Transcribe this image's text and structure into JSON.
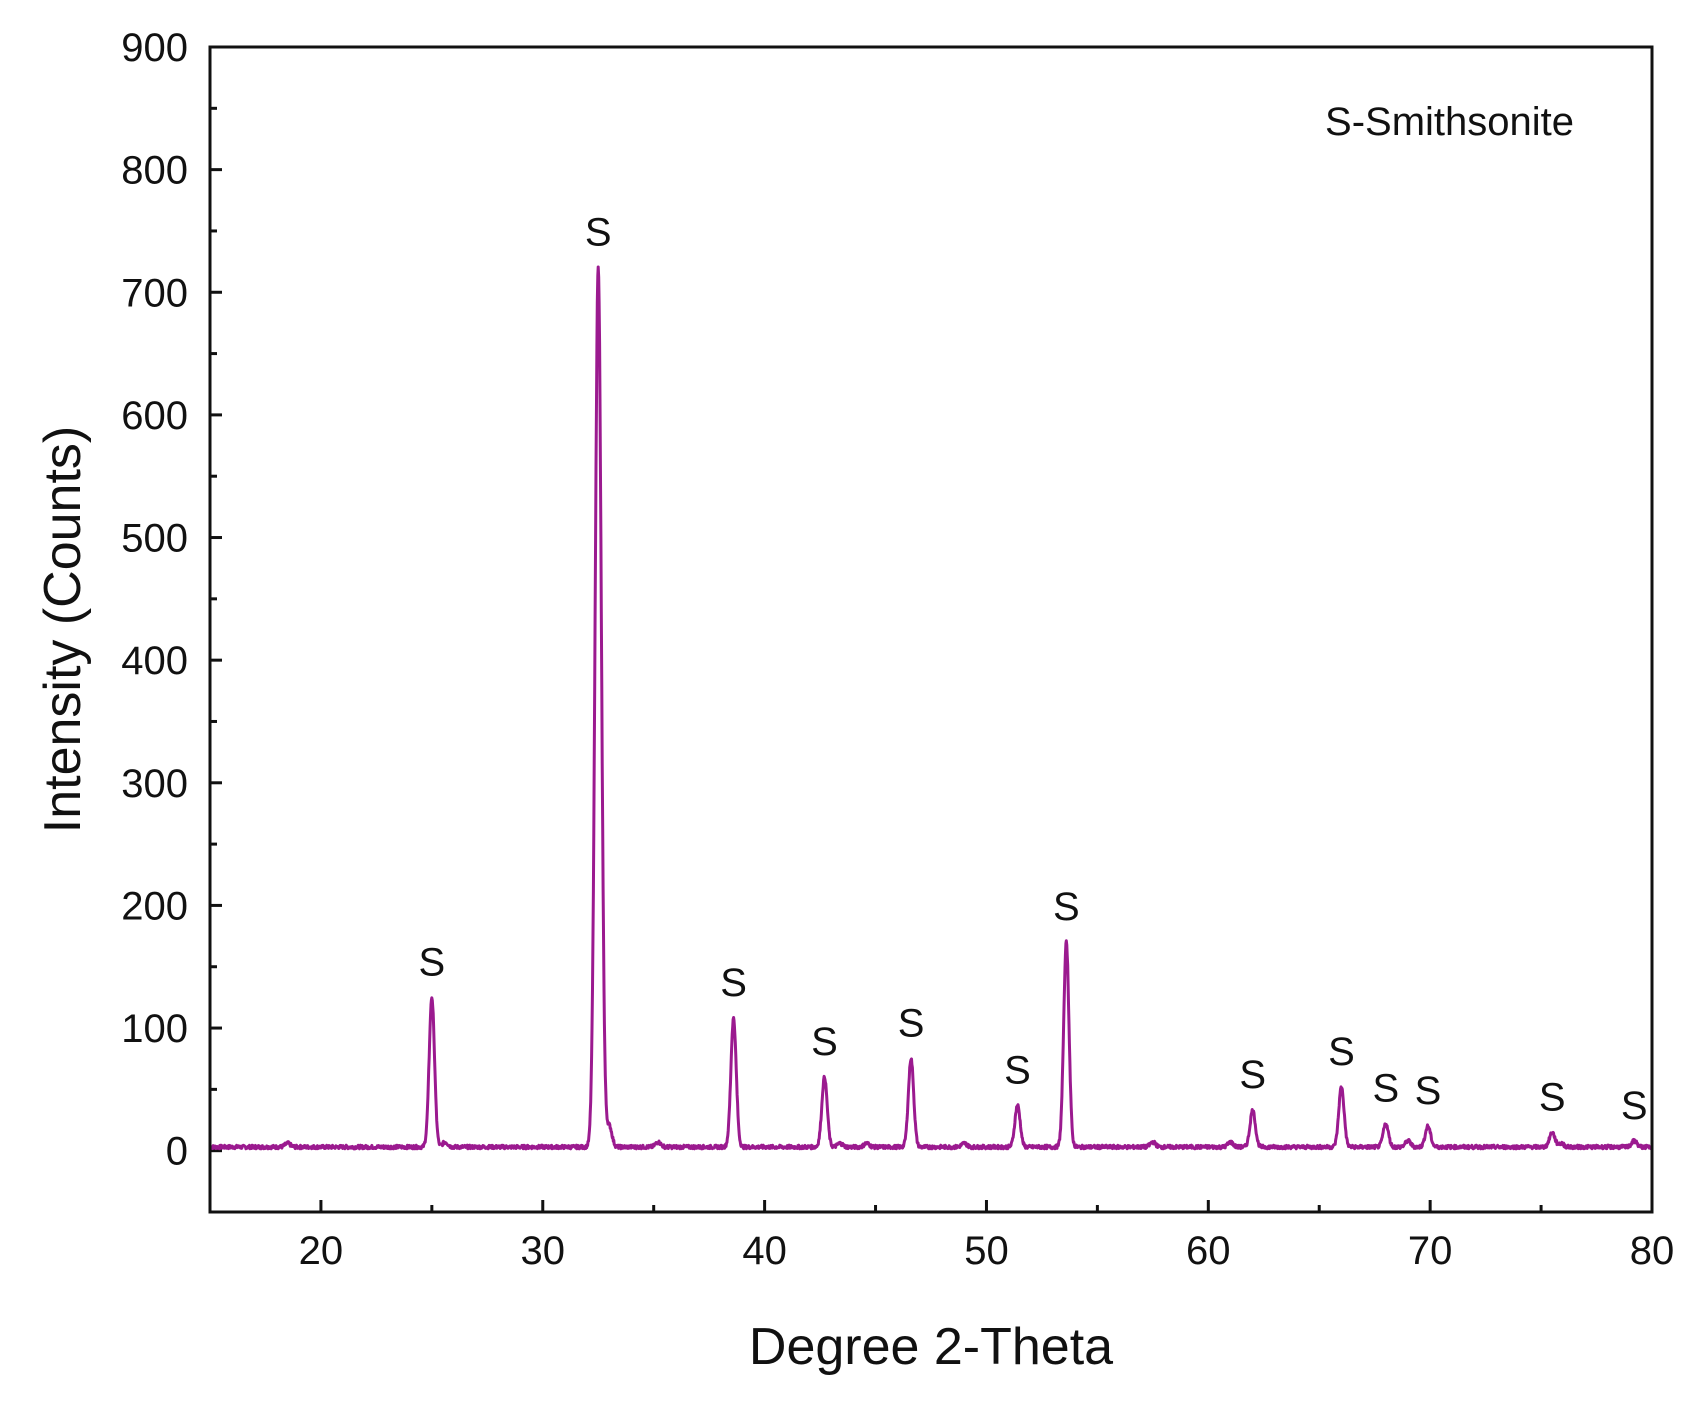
{
  "chart_data": {
    "type": "line",
    "title": "",
    "xlabel": "Degree 2-Theta",
    "ylabel": "Intensity (Counts)",
    "xlim": [
      15,
      80
    ],
    "ylim": [
      -50,
      900
    ],
    "xticks": [
      20,
      30,
      40,
      50,
      60,
      70,
      80
    ],
    "yticks": [
      0,
      100,
      200,
      300,
      400,
      500,
      600,
      700,
      800,
      900
    ],
    "legend_text": "S-Smithsonite",
    "legend_position": "top-right",
    "grid": false,
    "line_color": "#9b1a8f",
    "baseline": 3,
    "peaks": [
      {
        "x": 25.0,
        "y": 125,
        "label": "S"
      },
      {
        "x": 32.5,
        "y": 720,
        "label": "S"
      },
      {
        "x": 38.6,
        "y": 108,
        "label": "S"
      },
      {
        "x": 42.7,
        "y": 60,
        "label": "S"
      },
      {
        "x": 46.6,
        "y": 75,
        "label": "S"
      },
      {
        "x": 51.4,
        "y": 37,
        "label": "S"
      },
      {
        "x": 53.6,
        "y": 170,
        "label": "S"
      },
      {
        "x": 62.0,
        "y": 33,
        "label": "S"
      },
      {
        "x": 66.0,
        "y": 52,
        "label": "S"
      },
      {
        "x": 68.0,
        "y": 22,
        "label": "S"
      },
      {
        "x": 69.9,
        "y": 20,
        "label": "S"
      },
      {
        "x": 75.5,
        "y": 15,
        "label": "S"
      },
      {
        "x": 79.2,
        "y": 8,
        "label": "S"
      }
    ],
    "minor_peaks": [
      {
        "x": 18.5,
        "y": 6
      },
      {
        "x": 25.6,
        "y": 7
      },
      {
        "x": 33.0,
        "y": 20
      },
      {
        "x": 35.2,
        "y": 7
      },
      {
        "x": 43.4,
        "y": 6
      },
      {
        "x": 44.6,
        "y": 6
      },
      {
        "x": 49.0,
        "y": 6
      },
      {
        "x": 57.5,
        "y": 7
      },
      {
        "x": 61.0,
        "y": 7
      },
      {
        "x": 69.0,
        "y": 8
      },
      {
        "x": 75.9,
        "y": 6
      }
    ]
  }
}
